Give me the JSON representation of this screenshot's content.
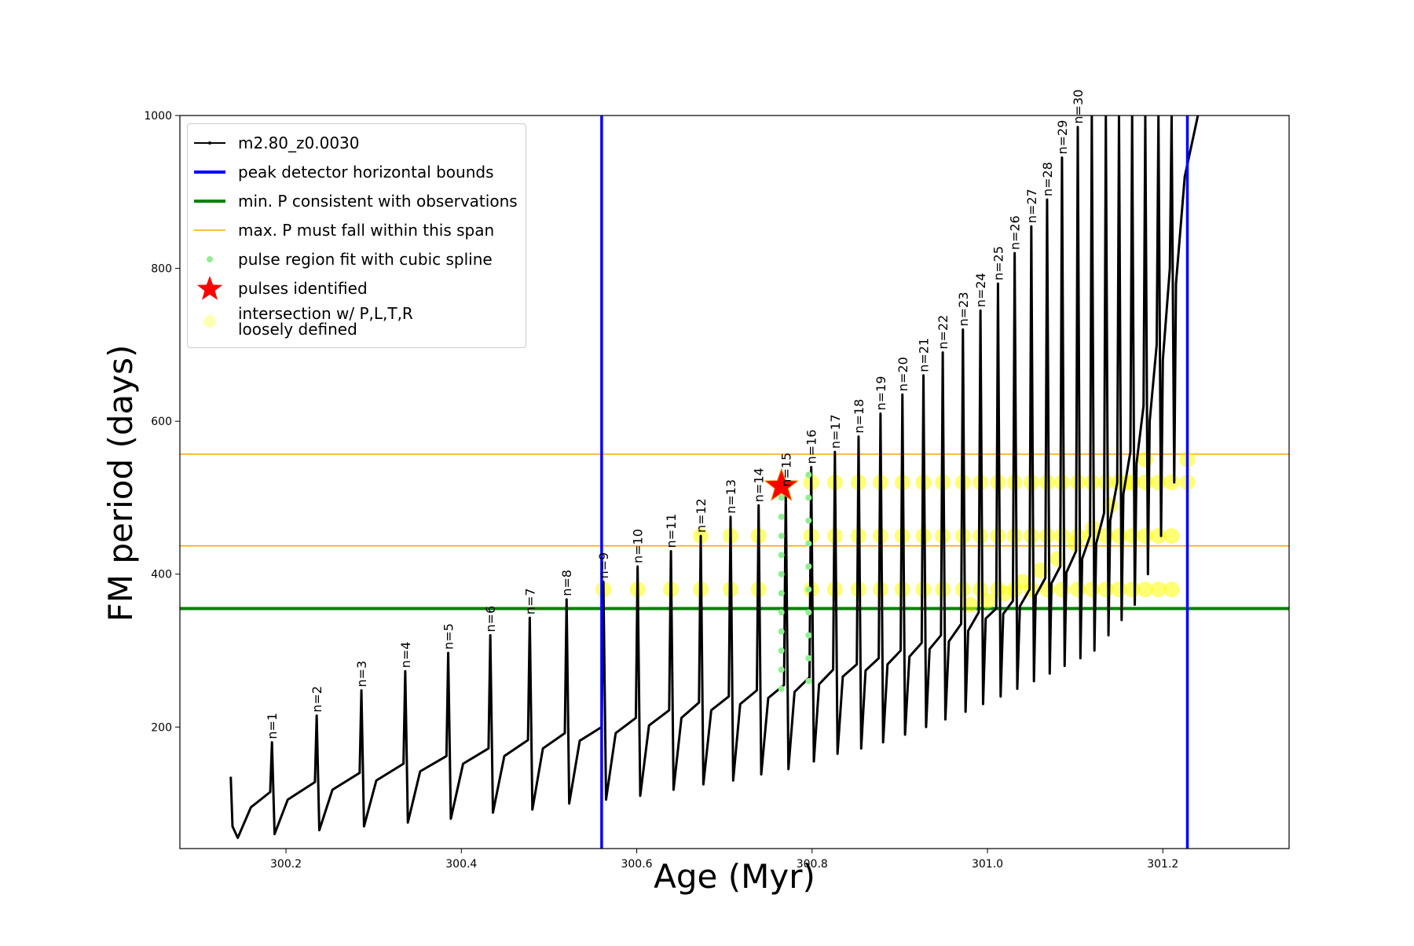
{
  "chart_data": {
    "type": "line",
    "xlabel": "Age (Myr)",
    "ylabel": "FM period (days)",
    "xlim": [
      300.079,
      301.344
    ],
    "ylim": [
      41,
      1000
    ],
    "xticks": [
      300.2,
      300.4,
      300.6,
      300.8,
      {
        "value": 301,
        "label": "301.0"
      },
      301.2
    ],
    "yticks": [
      200,
      400,
      600,
      800,
      1000
    ],
    "legend": "upper left",
    "series": [
      {
        "name": "m2.80_z0.0030",
        "color": "#000000",
        "x": [
          300.137,
          300.139,
          300.145,
          300.16,
          300.182,
          300.184,
          300.187,
          300.202,
          300.233,
          300.235,
          300.238,
          300.253,
          300.284,
          300.286,
          300.289,
          300.303,
          300.334,
          300.336,
          300.339,
          300.353,
          300.383,
          300.385,
          300.388,
          300.402,
          300.431,
          300.433,
          300.436,
          300.449,
          300.476,
          300.478,
          300.481,
          300.493,
          300.518,
          300.52,
          300.523,
          300.535,
          300.56,
          300.562,
          300.565,
          300.576,
          300.599,
          300.601,
          300.604,
          300.614,
          300.637,
          300.639,
          300.642,
          300.651,
          300.671,
          300.673,
          300.676,
          300.685,
          300.705,
          300.707,
          300.71,
          300.718,
          300.737,
          300.739,
          300.742,
          300.75,
          300.768,
          300.77,
          300.773,
          300.78,
          300.797,
          300.799,
          300.802,
          300.808,
          300.824,
          300.826,
          300.829,
          300.835,
          300.851,
          300.853,
          300.856,
          300.861,
          300.876,
          300.878,
          300.881,
          300.886,
          300.901,
          300.903,
          300.906,
          300.911,
          300.925,
          300.927,
          300.93,
          300.934,
          300.947,
          300.949,
          300.952,
          300.956,
          300.97,
          300.972,
          300.975,
          300.978,
          300.99,
          300.992,
          300.995,
          300.998,
          301.01,
          301.012,
          301.015,
          301.018,
          301.029,
          301.031,
          301.034,
          301.037,
          301.048,
          301.05,
          301.053,
          301.055,
          301.066,
          301.068,
          301.071,
          301.073,
          301.083,
          301.085,
          301.088,
          301.09,
          301.101,
          301.103,
          301.106,
          301.108,
          301.117,
          301.119,
          301.122,
          301.124,
          301.133,
          301.135,
          301.138,
          301.14,
          301.148,
          301.15,
          301.153,
          301.155,
          301.163,
          301.165,
          301.168,
          301.17,
          301.178,
          301.18,
          301.183,
          301.185,
          301.193,
          301.195,
          301.198,
          301.2,
          301.208,
          301.21,
          301.213,
          301.215,
          301.225,
          301.24
        ],
        "values": [
          135,
          70,
          55,
          95,
          115,
          180,
          60,
          105,
          128,
          215,
          65,
          118,
          140,
          248,
          70,
          130,
          152,
          273,
          75,
          142,
          162,
          297,
          80,
          152,
          172,
          320,
          88,
          162,
          183,
          343,
          92,
          172,
          192,
          367,
          100,
          182,
          200,
          390,
          105,
          192,
          212,
          410,
          110,
          202,
          222,
          430,
          118,
          212,
          232,
          450,
          125,
          222,
          240,
          475,
          130,
          230,
          248,
          490,
          138,
          238,
          255,
          510,
          145,
          246,
          265,
          540,
          155,
          256,
          275,
          560,
          165,
          266,
          282,
          580,
          172,
          274,
          290,
          610,
          180,
          282,
          300,
          635,
          190,
          292,
          310,
          660,
          200,
          302,
          320,
          690,
          210,
          312,
          335,
          720,
          220,
          326,
          350,
          745,
          230,
          342,
          355,
          780,
          240,
          348,
          365,
          820,
          250,
          358,
          380,
          855,
          260,
          372,
          395,
          890,
          270,
          388,
          410,
          945,
          280,
          402,
          430,
          985,
          290,
          420,
          450,
          1000,
          300,
          440,
          480,
          1000,
          320,
          470,
          520,
          1000,
          340,
          505,
          560,
          1000,
          360,
          545,
          620,
          1000,
          400,
          600,
          700,
          1000,
          450,
          680,
          800,
          1000,
          520,
          780,
          920,
          1000
        ]
      }
    ],
    "vlines": [
      {
        "name": "peak detector horizontal bounds",
        "color": "#0000ff",
        "x": [
          300.56,
          301.228
        ]
      }
    ],
    "hlines": [
      {
        "name": "min. P consistent with observations",
        "color": "#008000",
        "values": [
          355
        ]
      },
      {
        "name": "max. P must fall within this span",
        "color": "#ffa500",
        "values": [
          437,
          557
        ]
      }
    ],
    "scatter": [
      {
        "name": "pulse region fit with cubic spline",
        "color": "#90ee90",
        "marker": "dot",
        "x": [
          300.765,
          300.765,
          300.765,
          300.765,
          300.765,
          300.765,
          300.765,
          300.765,
          300.765,
          300.765,
          300.765,
          300.796,
          300.796,
          300.796,
          300.796,
          300.796,
          300.796,
          300.796,
          300.796,
          300.796,
          300.796
        ],
        "values": [
          250,
          275,
          300,
          325,
          350,
          375,
          400,
          425,
          450,
          475,
          500,
          260,
          290,
          320,
          350,
          380,
          410,
          440,
          470,
          500,
          530
        ]
      },
      {
        "name": "pulses identified",
        "color": "#ff0000",
        "marker": "star",
        "x": [
          300.765
        ],
        "values": [
          515
        ]
      },
      {
        "name": "intersection w/ P,L,T,R\nloosely defined",
        "color": "#ffff00",
        "marker": "circle",
        "x": [
          300.562,
          300.601,
          300.639,
          300.673,
          300.673,
          300.707,
          300.707,
          300.739,
          300.739,
          300.799,
          300.799,
          300.799,
          300.826,
          300.826,
          300.826,
          300.853,
          300.853,
          300.853,
          300.878,
          300.878,
          300.878,
          300.903,
          300.903,
          300.903,
          300.927,
          300.927,
          300.927,
          300.949,
          300.949,
          300.949,
          300.972,
          300.972,
          300.972,
          300.992,
          300.992,
          300.992,
          301.012,
          301.012,
          301.012,
          301.031,
          301.031,
          301.031,
          301.05,
          301.05,
          301.05,
          301.068,
          301.068,
          301.068,
          301.085,
          301.085,
          301.085,
          301.103,
          301.103,
          301.103,
          301.119,
          301.119,
          301.119,
          301.135,
          301.135,
          301.135,
          301.15,
          301.15,
          301.15,
          301.165,
          301.165,
          301.165,
          301.18,
          301.18,
          301.18,
          301.195,
          301.195,
          301.195,
          301.21,
          301.21,
          301.21,
          301.228,
          301.228,
          300.98,
          301.0,
          301.02,
          301.04,
          301.06,
          301.08,
          301.1,
          301.12,
          301.14,
          301.16,
          301.18
        ],
        "values": [
          380,
          380,
          380,
          380,
          450,
          380,
          450,
          380,
          450,
          380,
          450,
          520,
          380,
          450,
          520,
          380,
          450,
          520,
          380,
          450,
          520,
          380,
          450,
          520,
          380,
          450,
          520,
          380,
          450,
          520,
          380,
          450,
          520,
          380,
          450,
          520,
          380,
          450,
          520,
          380,
          450,
          520,
          380,
          450,
          520,
          380,
          450,
          520,
          380,
          450,
          520,
          380,
          450,
          520,
          380,
          450,
          520,
          380,
          450,
          520,
          380,
          450,
          520,
          380,
          450,
          520,
          380,
          450,
          520,
          380,
          450,
          520,
          380,
          450,
          520,
          520,
          550,
          360,
          365,
          375,
          390,
          405,
          420,
          440,
          460,
          490,
          520,
          550
        ]
      }
    ],
    "annotations": [
      "n=1",
      "n=2",
      "n=3",
      "n=4",
      "n=5",
      "n=6",
      "n=7",
      "n=8",
      "n=9",
      "n=10",
      "n=11",
      "n=12",
      "n=13",
      "n=14",
      "n=15",
      "n=16",
      "n=17",
      "n=18",
      "n=19",
      "n=20",
      "n=21",
      "n=22",
      "n=23",
      "n=24",
      "n=25",
      "n=26",
      "n=27",
      "n=28",
      "n=29",
      "n=30"
    ]
  }
}
